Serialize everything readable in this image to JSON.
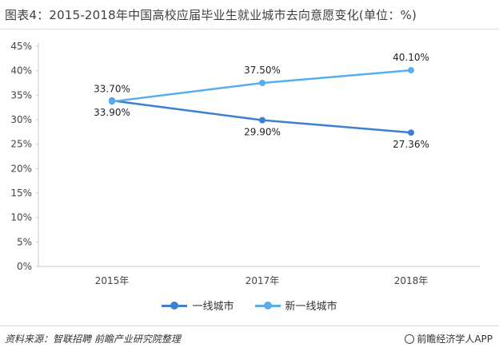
{
  "title": "图表4：2015-2018年中国高校应届毕业生就业城市去向意愿变化(单位：%)",
  "chart_data": {
    "type": "line",
    "categories": [
      "2015年",
      "2017年",
      "2018年"
    ],
    "series": [
      {
        "name": "一线城市",
        "values": [
          33.9,
          29.9,
          27.36
        ],
        "labels": [
          "33.90%",
          "29.90%",
          "27.36%"
        ],
        "color": "#3f7fd2"
      },
      {
        "name": "新一线城市",
        "values": [
          33.7,
          37.5,
          40.1
        ],
        "labels": [
          "33.70%",
          "37.50%",
          "40.10%"
        ],
        "color": "#56aef0"
      }
    ],
    "yticks": [
      "0%",
      "5%",
      "10%",
      "15%",
      "20%",
      "25%",
      "30%",
      "35%",
      "40%",
      "45%"
    ],
    "ylim": [
      0,
      45
    ],
    "grid": false,
    "legend_position": "bottom"
  },
  "footer": {
    "source": "资料来源：智联招聘 前瞻产业研究院整理",
    "brand": "前瞻经济学人APP"
  }
}
